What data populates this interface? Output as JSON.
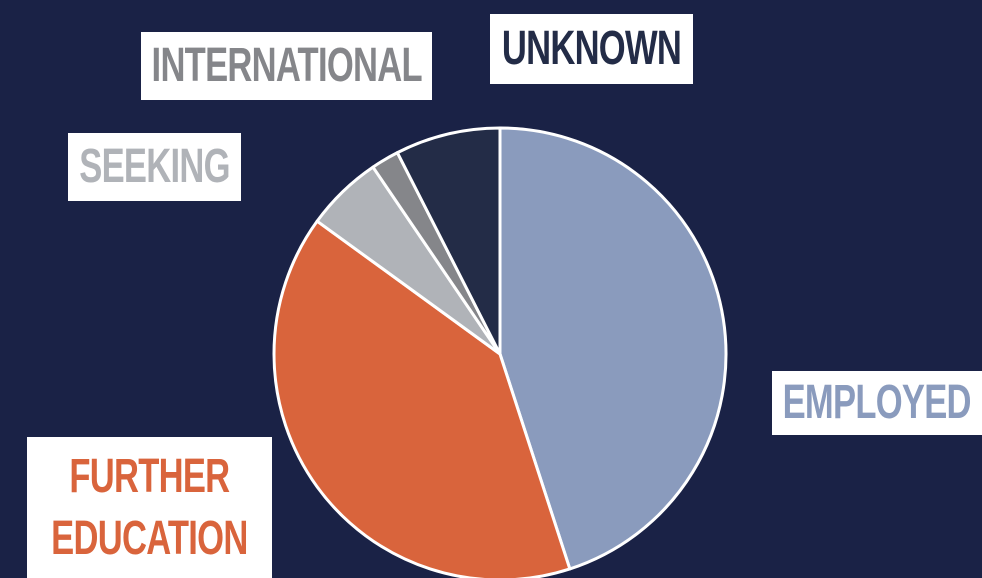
{
  "chart_data": {
    "type": "pie",
    "categories": [
      "EMPLOYED",
      "FURTHER EDUCATION",
      "SEEKING",
      "INTERNATIONAL",
      "UNKNOWN"
    ],
    "values": [
      45,
      40,
      5.5,
      2,
      7.5
    ],
    "colors": [
      "#8a9bbd",
      "#d9643c",
      "#b0b3b8",
      "#85868a",
      "#232c47"
    ]
  }
}
